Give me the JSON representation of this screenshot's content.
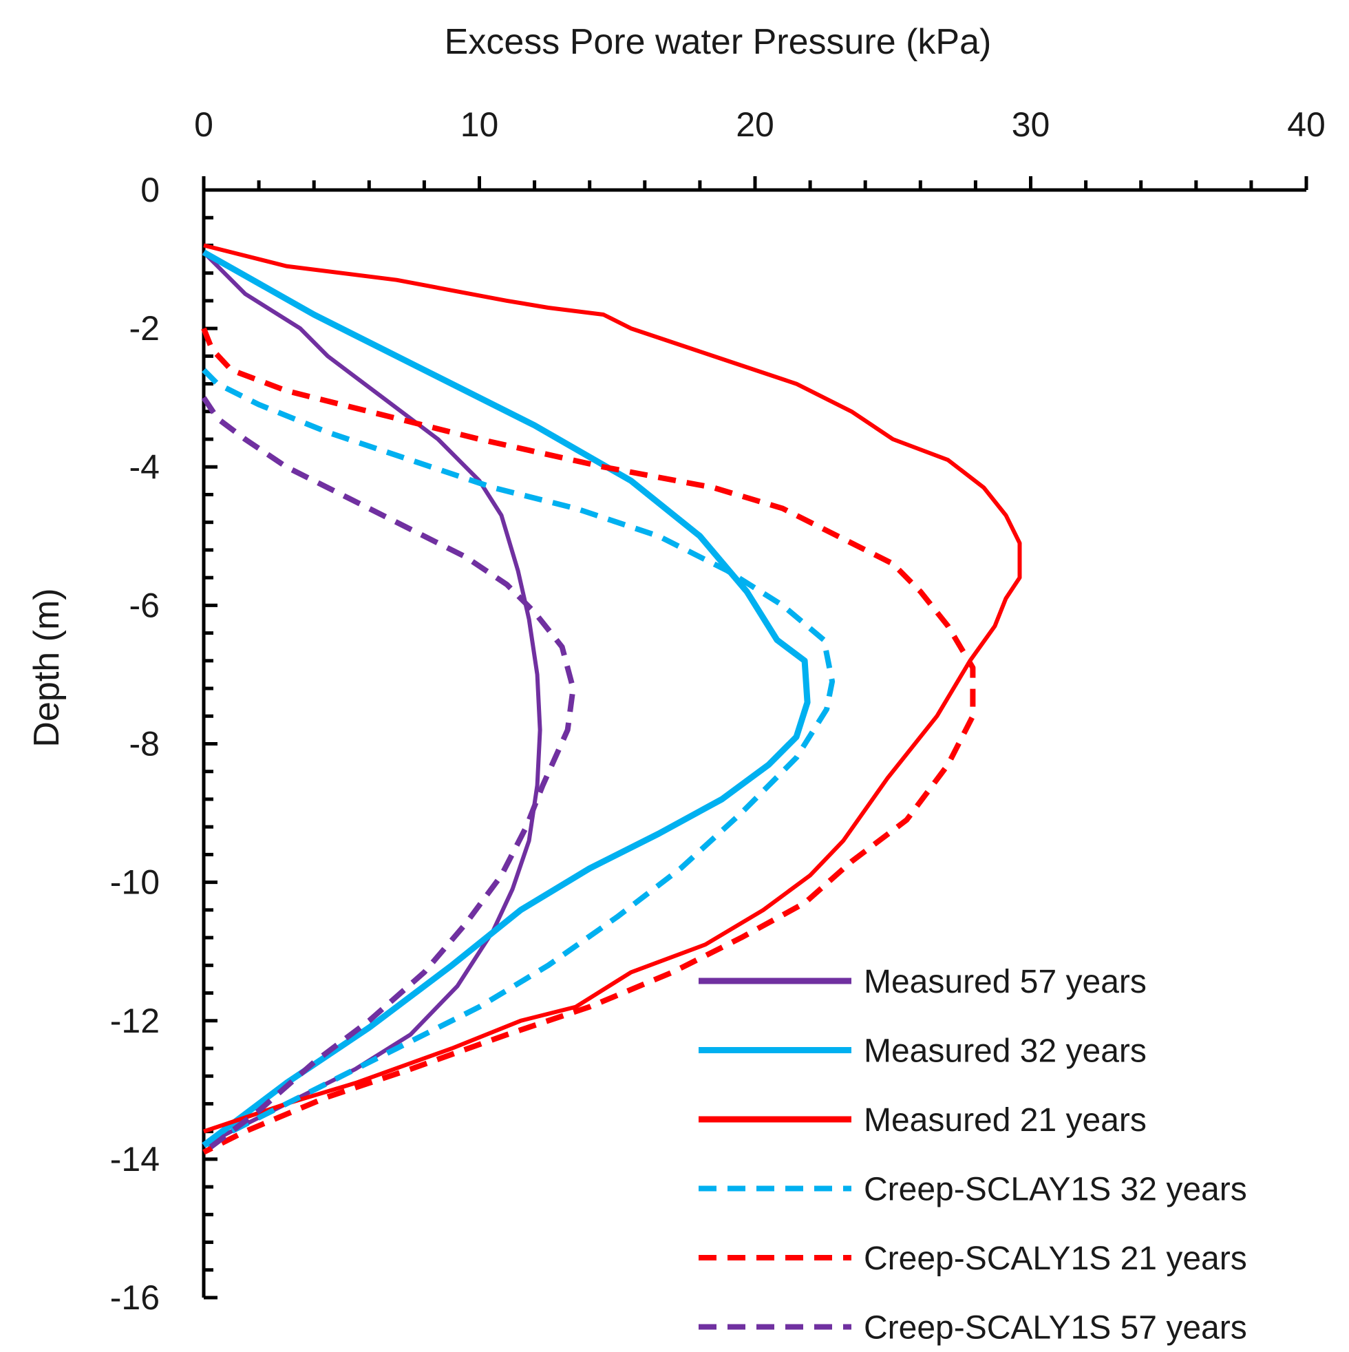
{
  "chart_data": {
    "type": "line",
    "title": "",
    "xlabel": "Excess Pore water Pressure (kPa)",
    "ylabel": "Depth (m)",
    "xlim": [
      0,
      40
    ],
    "ylim": [
      -16,
      0
    ],
    "xticks": [
      0,
      10,
      20,
      30,
      40
    ],
    "yticks": [
      0,
      -2,
      -4,
      -6,
      -8,
      -10,
      -12,
      -14,
      -16
    ],
    "x_axis_position": "top",
    "legend_position": "bottom-right",
    "grid": false,
    "series": [
      {
        "name": "Measured 57 years",
        "color": "#7030A0",
        "style": "solid",
        "x": [
          0,
          1.5,
          3.5,
          4.5,
          6.5,
          8.5,
          10,
          10.8,
          11.4,
          11.8,
          12.1,
          12.2,
          12.1,
          11.8,
          11.2,
          10.5,
          9.2,
          7.5,
          5.5,
          3,
          1,
          0
        ],
        "y": [
          -0.9,
          -1.5,
          -2.0,
          -2.4,
          -3.0,
          -3.6,
          -4.2,
          -4.7,
          -5.5,
          -6.2,
          -7.0,
          -7.8,
          -8.6,
          -9.4,
          -10.1,
          -10.7,
          -11.5,
          -12.2,
          -12.7,
          -13.2,
          -13.6,
          -13.8
        ]
      },
      {
        "name": "Measured  32 years",
        "color": "#00B0F0",
        "style": "solid",
        "x": [
          0,
          4,
          8,
          12,
          15.5,
          18,
          19.7,
          20.8,
          21.8,
          21.9,
          21.5,
          20.5,
          18.8,
          16.5,
          14,
          11.5,
          9,
          6,
          3,
          1,
          0
        ],
        "y": [
          -0.9,
          -1.8,
          -2.6,
          -3.4,
          -4.2,
          -5.0,
          -5.8,
          -6.5,
          -6.8,
          -7.4,
          -7.9,
          -8.3,
          -8.8,
          -9.3,
          -9.8,
          -10.4,
          -11.2,
          -12.1,
          -12.9,
          -13.5,
          -13.8
        ]
      },
      {
        "name": "Measured 21 years",
        "color": "#FF0000",
        "style": "solid",
        "x": [
          0,
          3,
          7,
          11,
          12.5,
          14.5,
          15.5,
          18.5,
          21.5,
          23.5,
          25,
          27,
          28.3,
          29.1,
          29.6,
          29.6,
          29.1,
          28.7,
          27.8,
          26.6,
          24.8,
          23.2,
          22,
          20.3,
          18.2,
          15.5,
          13.5,
          11.5,
          9,
          5.5,
          3,
          0
        ],
        "y": [
          -0.8,
          -1.1,
          -1.3,
          -1.6,
          -1.7,
          -1.8,
          -2.0,
          -2.4,
          -2.8,
          -3.2,
          -3.6,
          -3.9,
          -4.3,
          -4.7,
          -5.1,
          -5.6,
          -5.9,
          -6.3,
          -6.8,
          -7.6,
          -8.5,
          -9.4,
          -9.9,
          -10.4,
          -10.9,
          -11.3,
          -11.8,
          -12.0,
          -12.4,
          -12.9,
          -13.2,
          -13.6
        ]
      },
      {
        "name": "Creep-SCLAY1S 32 years",
        "color": "#00B0F0",
        "style": "dash",
        "x": [
          0,
          0.5,
          2,
          4.5,
          7.5,
          10.5,
          13.5,
          16.5,
          19,
          21,
          22.5,
          22.8,
          22.6,
          21.5,
          19.5,
          17.3,
          15,
          12.5,
          10,
          7,
          4,
          1,
          0
        ],
        "y": [
          -2.6,
          -2.8,
          -3.1,
          -3.5,
          -3.9,
          -4.3,
          -4.6,
          -5.0,
          -5.5,
          -6.0,
          -6.5,
          -7.1,
          -7.5,
          -8.2,
          -9.0,
          -9.8,
          -10.5,
          -11.2,
          -11.8,
          -12.4,
          -13.0,
          -13.6,
          -13.9
        ]
      },
      {
        "name": "Creep-SCALY1S  21 years",
        "color": "#FF0000",
        "style": "dash",
        "x": [
          0,
          0.3,
          1,
          3,
          6,
          10,
          14.5,
          18.5,
          21,
          23,
          25,
          26,
          27,
          27.9,
          27.9,
          27,
          25.5,
          23.5,
          21.8,
          19.5,
          17,
          14,
          11,
          7.5,
          4.5,
          1.5,
          0
        ],
        "y": [
          -2.0,
          -2.3,
          -2.6,
          -2.9,
          -3.2,
          -3.6,
          -4.0,
          -4.3,
          -4.6,
          -5.0,
          -5.4,
          -5.8,
          -6.3,
          -6.9,
          -7.6,
          -8.3,
          -9.1,
          -9.7,
          -10.3,
          -10.8,
          -11.3,
          -11.8,
          -12.2,
          -12.7,
          -13.1,
          -13.6,
          -13.9
        ]
      },
      {
        "name": "Creep-SCALY1S 57 years",
        "color": "#7030A0",
        "style": "dash",
        "x": [
          0,
          0.5,
          1.5,
          3,
          5,
          7.5,
          9.5,
          11,
          12,
          13,
          13.4,
          13.2,
          12.3,
          11.7,
          10.8,
          9.5,
          8,
          6,
          4,
          2,
          0
        ],
        "y": [
          -3.0,
          -3.3,
          -3.6,
          -4.0,
          -4.4,
          -4.9,
          -5.3,
          -5.7,
          -6.1,
          -6.6,
          -7.2,
          -7.8,
          -8.6,
          -9.2,
          -9.9,
          -10.6,
          -11.3,
          -12.0,
          -12.6,
          -13.3,
          -13.9
        ]
      }
    ]
  }
}
